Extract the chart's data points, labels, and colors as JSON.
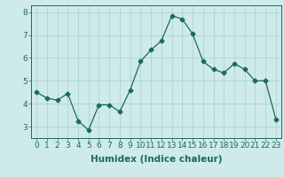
{
  "x": [
    0,
    1,
    2,
    3,
    4,
    5,
    6,
    7,
    8,
    9,
    10,
    11,
    12,
    13,
    14,
    15,
    16,
    17,
    18,
    19,
    20,
    21,
    22,
    23
  ],
  "y": [
    4.5,
    4.25,
    4.15,
    4.45,
    3.25,
    2.85,
    3.95,
    3.95,
    3.65,
    4.6,
    5.85,
    6.35,
    6.75,
    7.85,
    7.7,
    7.05,
    5.85,
    5.5,
    5.35,
    5.75,
    5.5,
    5.0,
    5.0,
    3.3
  ],
  "line_color": "#1a6b5a",
  "marker": "D",
  "marker_size": 2.5,
  "bg_color": "#ceeaea",
  "grid_color": "#aacfcf",
  "xlabel": "Humidex (Indice chaleur)",
  "ylim": [
    2.5,
    8.3
  ],
  "xlim": [
    -0.5,
    23.5
  ],
  "yticks": [
    3,
    4,
    5,
    6,
    7,
    8
  ],
  "xticks": [
    0,
    1,
    2,
    3,
    4,
    5,
    6,
    7,
    8,
    9,
    10,
    11,
    12,
    13,
    14,
    15,
    16,
    17,
    18,
    19,
    20,
    21,
    22,
    23
  ],
  "tick_color": "#1a6b5a",
  "label_color": "#1a6b5a",
  "font_size_xlabel": 7.5,
  "font_size_ticks": 6.5
}
